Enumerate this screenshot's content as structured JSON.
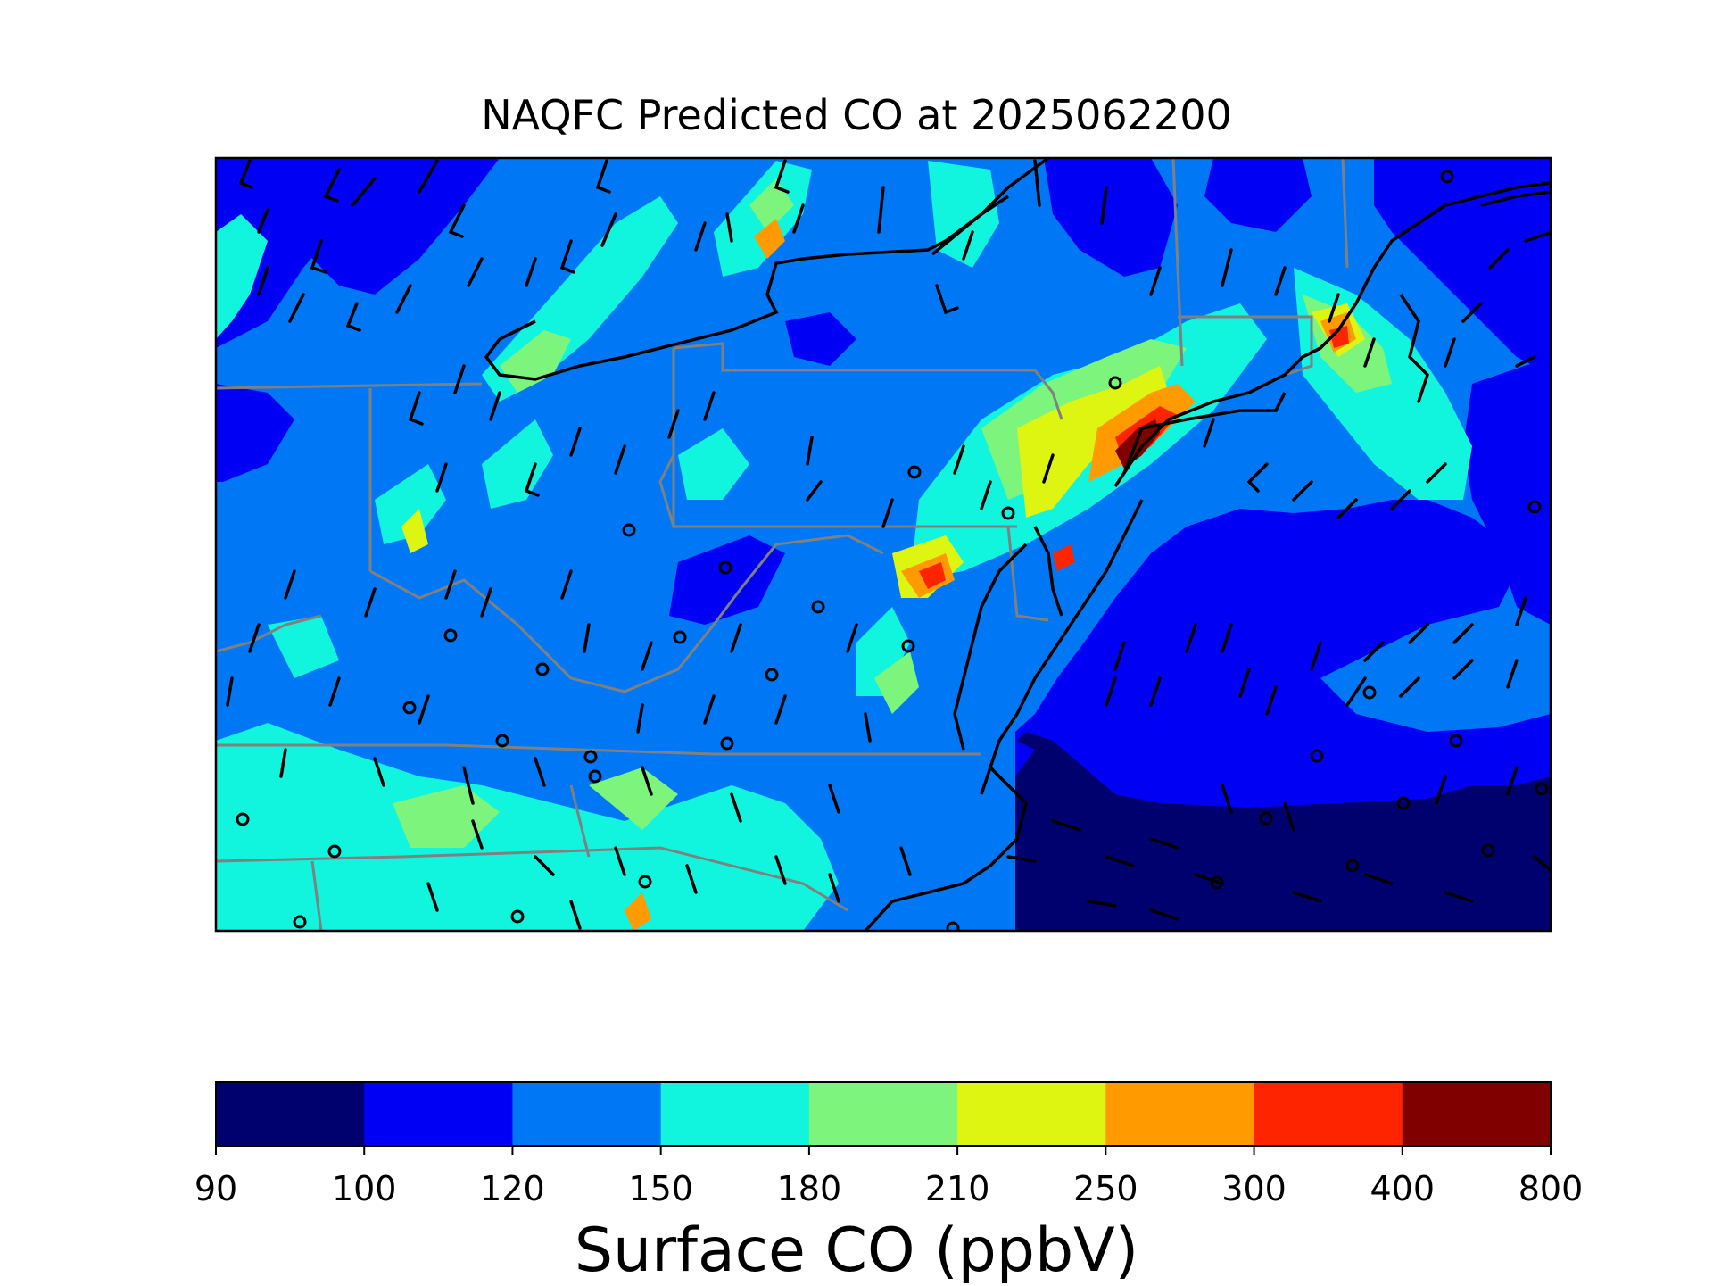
{
  "title": "NAQFC Predicted CO at 2025062200",
  "colorbar": {
    "label": "Surface CO (ppbV)",
    "ticks": [
      "90",
      "100",
      "120",
      "150",
      "180",
      "210",
      "250",
      "300",
      "400",
      "800"
    ],
    "colors": [
      "#00006e",
      "#0000f5",
      "#0078f5",
      "#11f5de",
      "#7df57d",
      "#def511",
      "#ff9a00",
      "#ff2400",
      "#800000"
    ]
  },
  "map": {
    "ocean_color": "#0000f5",
    "land_base_color": "#0078f5",
    "coastline_color": "#000000",
    "state_border_color": "#808080",
    "station_marker": "circle-marker",
    "wind_marker": "wind-barb"
  }
}
